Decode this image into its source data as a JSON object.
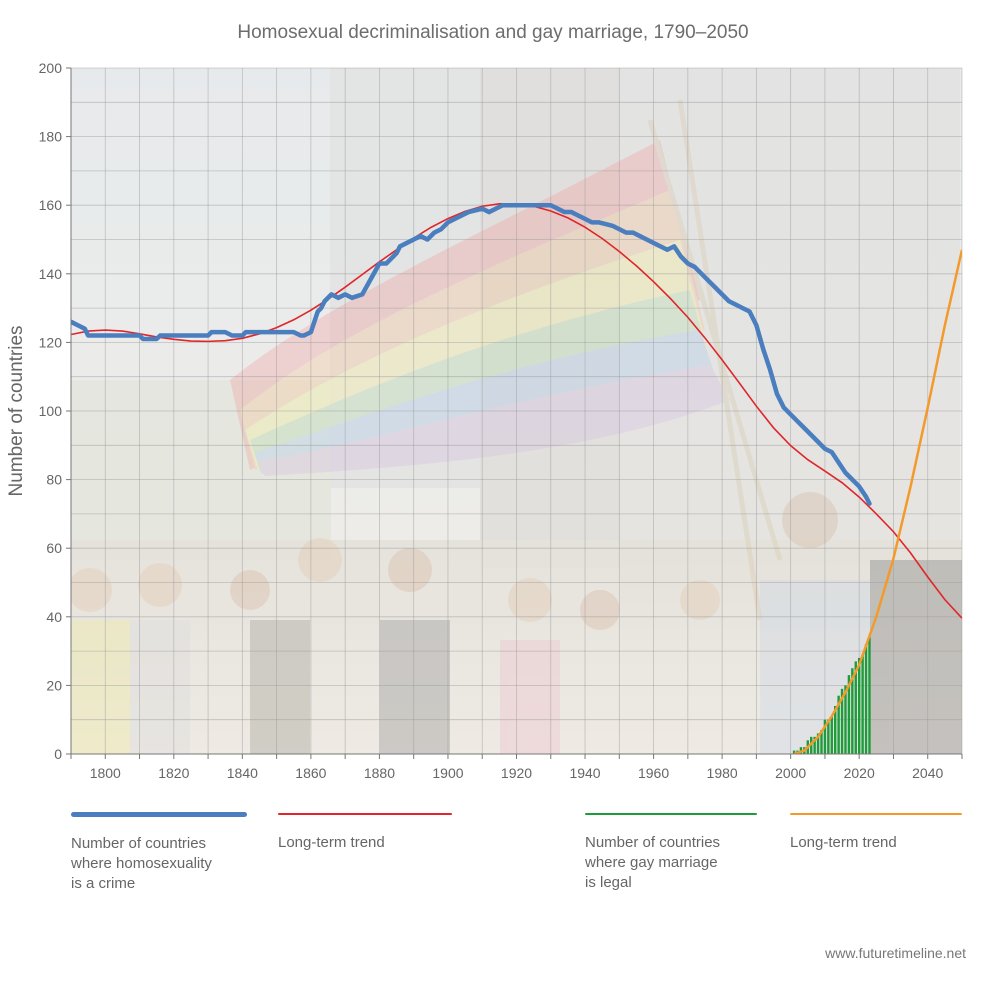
{
  "chart_data": {
    "type": "line",
    "title": "Homosexual decriminalisation and gay marriage, 1790–2050",
    "xlabel": "",
    "ylabel": "Number of countries",
    "xlim": [
      1790,
      2050
    ],
    "ylim": [
      0,
      200
    ],
    "x_ticks": [
      1800,
      1820,
      1840,
      1860,
      1880,
      1900,
      1920,
      1940,
      1960,
      1980,
      2000,
      2020,
      2040
    ],
    "y_ticks": [
      0,
      20,
      40,
      60,
      80,
      100,
      120,
      140,
      160,
      180,
      200
    ],
    "grid": true,
    "legend_position": "bottom",
    "colors": {
      "crime": "#4a7ebf",
      "crime_trend": "#e0262a",
      "marriage": "#1f9b3a",
      "marriage_trend": "#f39a2d"
    },
    "series": [
      {
        "name": "Number of countries where homosexuality is a crime",
        "type": "step-line",
        "x": [
          1790,
          1792,
          1794,
          1795,
          1810,
          1811,
          1815,
          1816,
          1830,
          1831,
          1835,
          1837,
          1840,
          1841,
          1855,
          1857,
          1858,
          1860,
          1862,
          1863,
          1864,
          1866,
          1868,
          1870,
          1872,
          1875,
          1880,
          1882,
          1884,
          1885,
          1886,
          1888,
          1890,
          1892,
          1894,
          1896,
          1898,
          1900,
          1902,
          1904,
          1906,
          1910,
          1912,
          1914,
          1916,
          1920,
          1925,
          1930,
          1932,
          1934,
          1936,
          1938,
          1940,
          1942,
          1944,
          1948,
          1952,
          1954,
          1956,
          1958,
          1962,
          1964,
          1966,
          1968,
          1970,
          1972,
          1974,
          1976,
          1978,
          1980,
          1982,
          1984,
          1986,
          1988,
          1990,
          1992,
          1994,
          1996,
          1998,
          2000,
          2002,
          2004,
          2006,
          2008,
          2010,
          2012,
          2014,
          2016,
          2018,
          2020,
          2022,
          2023
        ],
        "values": [
          126,
          125,
          124,
          122,
          122,
          121,
          121,
          122,
          122,
          123,
          123,
          122,
          122,
          123,
          123,
          122,
          122,
          123,
          129,
          130,
          132,
          134,
          133,
          134,
          133,
          134,
          143,
          143,
          145,
          146,
          148,
          149,
          150,
          151,
          150,
          152,
          153,
          155,
          156,
          157,
          158,
          159,
          158,
          159,
          160,
          160,
          160,
          160,
          159,
          158,
          158,
          157,
          156,
          155,
          155,
          154,
          152,
          152,
          151,
          150,
          148,
          147,
          148,
          145,
          143,
          142,
          140,
          138,
          136,
          134,
          132,
          131,
          130,
          129,
          125,
          118,
          112,
          105,
          101,
          99,
          97,
          95,
          93,
          91,
          89,
          88,
          85,
          82,
          80,
          78,
          75,
          73
        ]
      },
      {
        "name": "Long-term trend (decriminalisation)",
        "type": "line",
        "x": [
          1790,
          1795,
          1800,
          1805,
          1810,
          1815,
          1820,
          1825,
          1830,
          1835,
          1840,
          1845,
          1850,
          1855,
          1860,
          1865,
          1870,
          1875,
          1880,
          1885,
          1890,
          1895,
          1900,
          1905,
          1910,
          1915,
          1920,
          1925,
          1930,
          1935,
          1940,
          1945,
          1950,
          1955,
          1960,
          1965,
          1970,
          1975,
          1980,
          1985,
          1990,
          1995,
          2000,
          2005,
          2010,
          2015,
          2020,
          2025,
          2030,
          2035,
          2040,
          2045,
          2050
        ],
        "values": [
          122.3,
          123.3,
          123.6,
          123.3,
          122.5,
          121.6,
          120.9,
          120.4,
          120.3,
          120.5,
          121.2,
          122.5,
          124.3,
          126.6,
          129.4,
          132.6,
          136.1,
          139.8,
          143.5,
          147.0,
          150.4,
          153.5,
          156.1,
          158.2,
          159.7,
          160.4,
          160.4,
          159.7,
          158.3,
          156.3,
          153.6,
          150.3,
          146.5,
          142.3,
          137.7,
          132.7,
          127.3,
          121.3,
          114.9,
          108.2,
          101.4,
          95.1,
          89.9,
          85.8,
          82.5,
          79.1,
          74.9,
          70.0,
          64.8,
          58.6,
          51.6,
          45.0,
          39.6
        ]
      },
      {
        "name": "Number of countries where gay marriage is legal",
        "type": "bar",
        "x": [
          2001,
          2002,
          2003,
          2004,
          2005,
          2006,
          2007,
          2008,
          2009,
          2010,
          2011,
          2012,
          2013,
          2014,
          2015,
          2016,
          2017,
          2018,
          2019,
          2020,
          2021,
          2022,
          2023
        ],
        "values": [
          1,
          1,
          2,
          2,
          4,
          5,
          5,
          6,
          7,
          10,
          10,
          11,
          14,
          17,
          19,
          20,
          23,
          25,
          27,
          28,
          29,
          32,
          34
        ]
      },
      {
        "name": "Long-term trend (gay marriage)",
        "type": "line",
        "x": [
          2001,
          2004,
          2008,
          2012,
          2016,
          2020,
          2025,
          2030,
          2035,
          2040,
          2045,
          2050
        ],
        "values": [
          0,
          1,
          5,
          11,
          18,
          26,
          40,
          57,
          78,
          101,
          125,
          147
        ]
      }
    ]
  },
  "legend": [
    {
      "label": "Number of countries\nwhere homosexuality\nis a crime",
      "color": "#4a7ebf"
    },
    {
      "label": "Long-term trend",
      "color": "#e0262a"
    },
    {
      "label": "Number of countries\nwhere gay marriage\nis legal",
      "color": "#1f9b3a"
    },
    {
      "label": "Long-term trend",
      "color": "#f39a2d"
    }
  ],
  "source": "www.futuretimeline.net"
}
